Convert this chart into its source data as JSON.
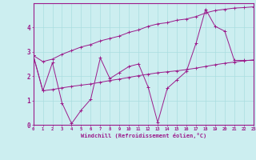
{
  "xlabel": "Windchill (Refroidissement éolien,°C)",
  "bg_color": "#cceef0",
  "line_color": "#9b1b8b",
  "grid_color": "#aadde0",
  "x_data": [
    0,
    1,
    2,
    3,
    4,
    5,
    6,
    7,
    8,
    9,
    10,
    11,
    12,
    13,
    14,
    15,
    16,
    17,
    18,
    19,
    20,
    21,
    22,
    23
  ],
  "y_main": [
    2.85,
    1.4,
    2.55,
    0.9,
    0.05,
    0.6,
    1.05,
    2.75,
    1.9,
    2.15,
    2.4,
    2.5,
    1.55,
    0.1,
    1.5,
    1.85,
    2.2,
    3.35,
    4.75,
    4.05,
    3.85,
    2.65,
    2.65,
    2.65
  ],
  "y_upper": [
    2.85,
    2.6,
    2.7,
    2.9,
    3.05,
    3.2,
    3.3,
    3.45,
    3.55,
    3.65,
    3.8,
    3.9,
    4.05,
    4.15,
    4.2,
    4.3,
    4.35,
    4.45,
    4.6,
    4.7,
    4.75,
    4.8,
    4.82,
    4.85
  ],
  "y_lower": [
    2.85,
    1.4,
    1.45,
    1.52,
    1.58,
    1.63,
    1.68,
    1.75,
    1.82,
    1.88,
    1.95,
    2.02,
    2.08,
    2.14,
    2.18,
    2.22,
    2.27,
    2.33,
    2.4,
    2.47,
    2.53,
    2.58,
    2.63,
    2.67
  ],
  "ylim": [
    0,
    5
  ],
  "xlim": [
    0,
    23
  ],
  "yticks": [
    0,
    1,
    2,
    3,
    4
  ],
  "xticks": [
    0,
    1,
    2,
    3,
    4,
    5,
    6,
    7,
    8,
    9,
    10,
    11,
    12,
    13,
    14,
    15,
    16,
    17,
    18,
    19,
    20,
    21,
    22,
    23
  ]
}
